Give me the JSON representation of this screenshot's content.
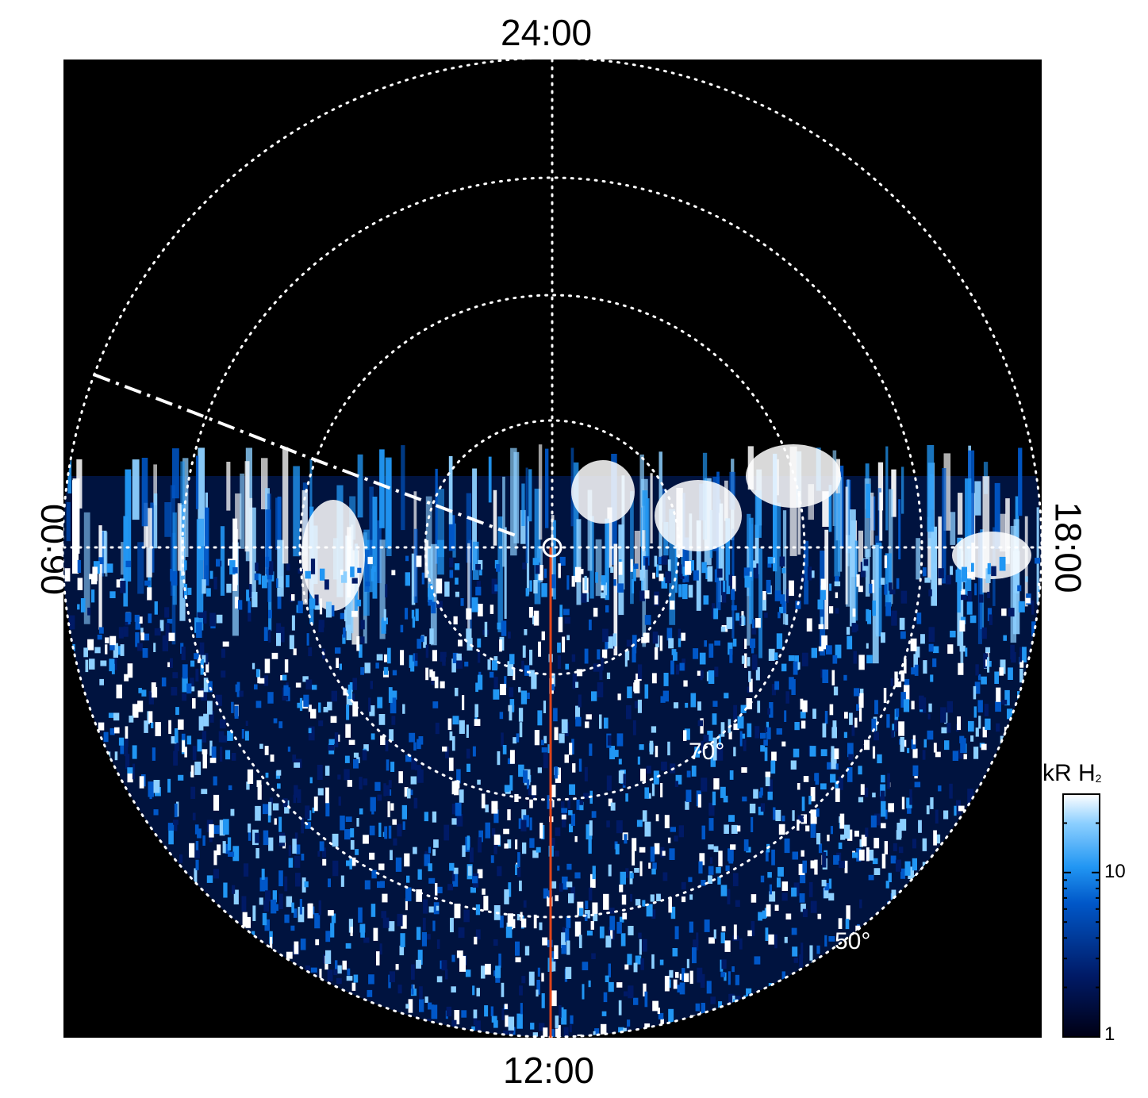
{
  "local_time_labels": {
    "top": "24:00",
    "bottom": "12:00",
    "left": "06:00",
    "right": "18:00"
  },
  "latitude_labels": [
    "70°",
    "50°"
  ],
  "colorbar": {
    "title": "kR H",
    "title_subscript": "2",
    "scale": "log",
    "range": [
      1,
      30
    ],
    "tick_labels": [
      "10",
      "1"
    ],
    "colors": [
      "#000014",
      "#001a66",
      "#0057c8",
      "#2196f3",
      "#8ccfff",
      "#ffffff"
    ]
  },
  "colors": {
    "background": "#000000",
    "grid": "#ffffff",
    "meridian_line": "#e0451a"
  },
  "icons": [
    "pole-marker-icon"
  ]
}
